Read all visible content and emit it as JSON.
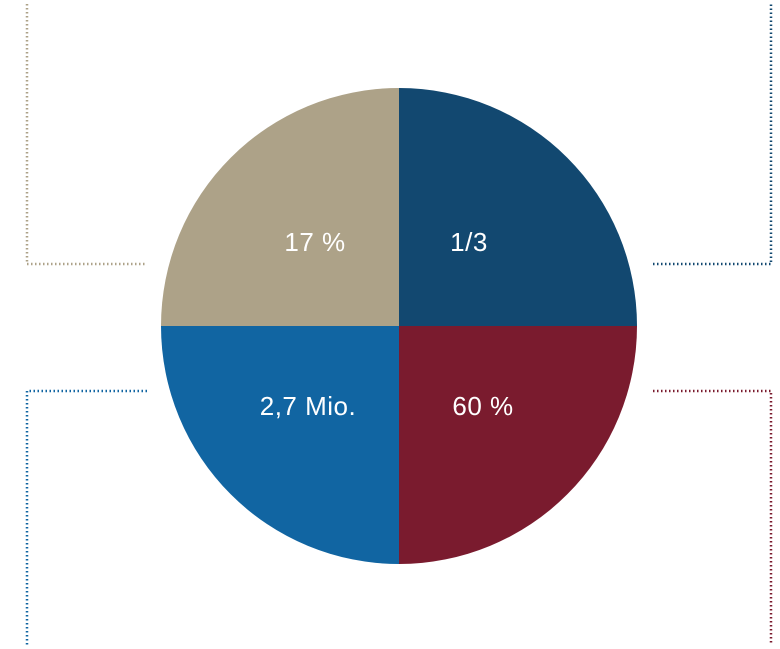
{
  "chart_data": {
    "type": "pie",
    "slices": [
      {
        "label": "1/3",
        "value": 25,
        "color": "#124870"
      },
      {
        "label": "60 %",
        "value": 25,
        "color": "#7a1b2e"
      },
      {
        "label": "2,7 Mio.",
        "value": 25,
        "color": "#1165a2"
      },
      {
        "label": "17 %",
        "value": 25,
        "color": "#ada288"
      }
    ],
    "start_angle_deg": 0,
    "direction": "clockwise"
  }
}
